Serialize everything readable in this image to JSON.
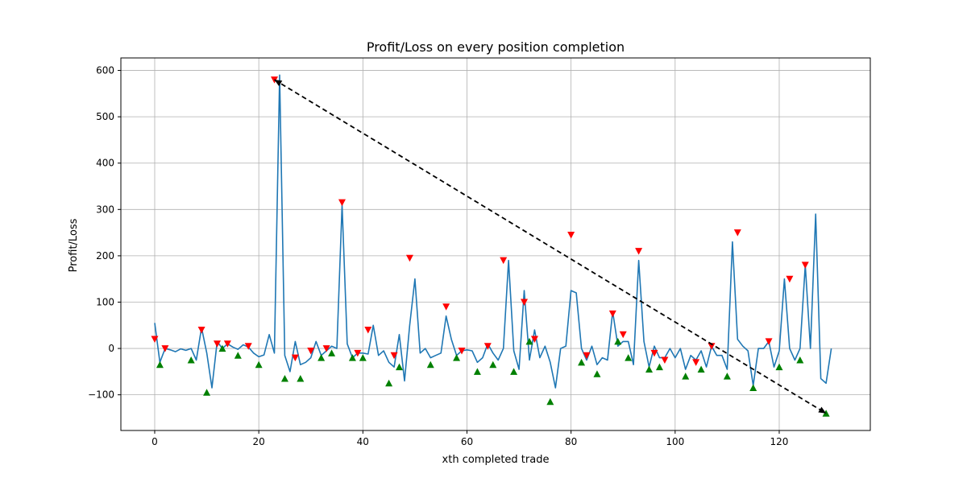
{
  "chart_data": {
    "type": "line",
    "title": "Profit/Loss on every position completion",
    "xlabel": "xth completed trade",
    "ylabel": "Profit/Loss",
    "xlim": [
      -6.5,
      137.5
    ],
    "ylim": [
      -177,
      627
    ],
    "grid": true,
    "x_ticks": [
      0,
      20,
      40,
      60,
      80,
      100,
      120
    ],
    "y_ticks": [
      -100,
      0,
      100,
      200,
      300,
      400,
      500,
      600
    ],
    "colors": {
      "line": "#1f77b4",
      "sell_marker": "#ff0000",
      "buy_marker": "#008000",
      "trend": "#000000"
    },
    "series": [
      {
        "kind": "line",
        "values": [
          55,
          -30,
          0,
          -3,
          -7,
          -1,
          -4,
          0,
          -25,
          45,
          -10,
          -85,
          15,
          0,
          10,
          3,
          -2,
          8,
          3,
          -10,
          -18,
          -14,
          30,
          -10,
          590,
          -15,
          -50,
          15,
          -35,
          -30,
          -20,
          15,
          -15,
          -5,
          5,
          0,
          310,
          10,
          -20,
          -10,
          -10,
          -12,
          50,
          -15,
          -5,
          -30,
          -40,
          30,
          -70,
          50,
          150,
          -10,
          0,
          -20,
          -15,
          -10,
          70,
          20,
          -15,
          -5,
          -3,
          -5,
          -30,
          -20,
          10,
          -10,
          -25,
          0,
          190,
          -5,
          -45,
          125,
          -25,
          40,
          -20,
          5,
          -30,
          -85,
          0,
          5,
          125,
          120,
          0,
          -25,
          5,
          -35,
          -20,
          -25,
          80,
          5,
          15,
          15,
          -35,
          190,
          15,
          -40,
          5,
          -20,
          -20,
          0,
          -20,
          0,
          -45,
          -15,
          -25,
          -5,
          -40,
          5,
          -15,
          -15,
          -45,
          230,
          20,
          5,
          -5,
          -80,
          0,
          0,
          15,
          -40,
          -5,
          150,
          0,
          -25,
          0,
          180,
          0,
          290,
          -65,
          -75,
          0
        ]
      },
      {
        "kind": "sell-markers",
        "points": [
          [
            0,
            20
          ],
          [
            2,
            0
          ],
          [
            9,
            40
          ],
          [
            12,
            10
          ],
          [
            14,
            10
          ],
          [
            18,
            5
          ],
          [
            23,
            580
          ],
          [
            27,
            -20
          ],
          [
            30,
            -5
          ],
          [
            33,
            0
          ],
          [
            36,
            315
          ],
          [
            39,
            -10
          ],
          [
            41,
            40
          ],
          [
            46,
            -15
          ],
          [
            49,
            195
          ],
          [
            56,
            90
          ],
          [
            59,
            -5
          ],
          [
            64,
            5
          ],
          [
            67,
            190
          ],
          [
            71,
            100
          ],
          [
            73,
            20
          ],
          [
            80,
            245
          ],
          [
            83,
            -15
          ],
          [
            88,
            75
          ],
          [
            90,
            30
          ],
          [
            93,
            210
          ],
          [
            96,
            -10
          ],
          [
            98,
            -25
          ],
          [
            104,
            -30
          ],
          [
            107,
            5
          ],
          [
            112,
            250
          ],
          [
            118,
            15
          ],
          [
            122,
            150
          ],
          [
            125,
            180
          ]
        ]
      },
      {
        "kind": "buy-markers",
        "points": [
          [
            1,
            -35
          ],
          [
            7,
            -25
          ],
          [
            10,
            -95
          ],
          [
            13,
            0
          ],
          [
            16,
            -15
          ],
          [
            20,
            -35
          ],
          [
            25,
            -65
          ],
          [
            28,
            -65
          ],
          [
            32,
            -20
          ],
          [
            34,
            -10
          ],
          [
            38,
            -20
          ],
          [
            40,
            -20
          ],
          [
            45,
            -75
          ],
          [
            47,
            -40
          ],
          [
            53,
            -35
          ],
          [
            58,
            -20
          ],
          [
            62,
            -50
          ],
          [
            65,
            -35
          ],
          [
            69,
            -50
          ],
          [
            72,
            15
          ],
          [
            76,
            -115
          ],
          [
            82,
            -30
          ],
          [
            85,
            -55
          ],
          [
            89,
            15
          ],
          [
            91,
            -20
          ],
          [
            95,
            -45
          ],
          [
            97,
            -40
          ],
          [
            102,
            -60
          ],
          [
            105,
            -45
          ],
          [
            110,
            -60
          ],
          [
            115,
            -85
          ],
          [
            120,
            -40
          ],
          [
            124,
            -25
          ],
          [
            129,
            -140
          ]
        ]
      },
      {
        "kind": "trend-arrow",
        "from": [
          23,
          580
        ],
        "to": [
          129,
          -140
        ]
      }
    ]
  }
}
